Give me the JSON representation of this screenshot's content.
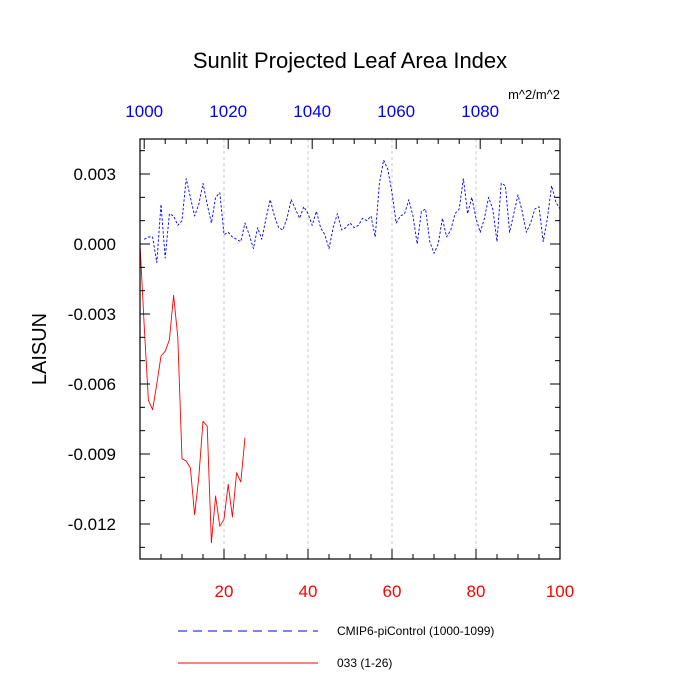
{
  "chart_data": {
    "type": "line",
    "title": "Sunlit Projected Leaf Area Index",
    "units": "m^2/m^2",
    "ylabel": "LAISUN",
    "xlabel": "",
    "ylim": [
      -0.0135,
      0.0045
    ],
    "y_ticks": [
      "0.003",
      "0.000",
      "-0.003",
      "-0.006",
      "-0.009",
      "-0.012"
    ],
    "y_tick_values": [
      0.003,
      0.0,
      -0.003,
      -0.006,
      -0.009,
      -0.012
    ],
    "x_bottom": {
      "range": [
        0,
        100
      ],
      "ticks": [
        "20",
        "40",
        "60",
        "80",
        "100"
      ],
      "tick_values": [
        20,
        40,
        60,
        80,
        100
      ],
      "color": "#ff0000"
    },
    "x_top": {
      "range": [
        999,
        1099
      ],
      "ticks": [
        "1000",
        "1020",
        "1040",
        "1060",
        "1080"
      ],
      "tick_values": [
        1000,
        1020,
        1040,
        1060,
        1080
      ],
      "color": "#0000ff"
    },
    "grid": "vertical dashed at x=20,40,60,80",
    "legend_position": "bottom",
    "series": [
      {
        "name": "CMIP6-piControl (1000-1099)",
        "color": "#0000ff",
        "dash": "dashed",
        "axis": "top",
        "x_start": 1,
        "values": [
          0.0002,
          0.0003,
          0.0003,
          -0.0008,
          0.0017,
          -0.0006,
          0.0013,
          0.0012,
          0.0008,
          0.001,
          0.0028,
          0.002,
          0.0012,
          0.0017,
          0.0026,
          0.0017,
          0.0009,
          0.002,
          0.0022,
          0.0004,
          0.0005,
          0.0003,
          0.0002,
          0.0001,
          0.0009,
          0.0004,
          -0.0002,
          0.0007,
          0.0002,
          0.0011,
          0.0019,
          0.0012,
          0.0007,
          0.0006,
          0.0011,
          0.0019,
          0.0015,
          0.0011,
          0.0016,
          0.0013,
          0.0008,
          0.0014,
          0.0007,
          0.0004,
          -0.0002,
          0.0007,
          0.0013,
          0.0006,
          0.0007,
          0.0009,
          0.0007,
          0.0008,
          0.0011,
          0.001,
          0.0012,
          0.0003,
          0.0026,
          0.0036,
          0.0032,
          0.0022,
          0.0009,
          0.0012,
          0.0013,
          0.0019,
          0.0012,
          0.0,
          0.0014,
          0.0015,
          0.0001,
          -0.0004,
          0.0,
          0.0011,
          0.0003,
          0.0006,
          0.0013,
          0.0015,
          0.0028,
          0.0013,
          0.002,
          0.0011,
          0.0005,
          0.0011,
          0.002,
          0.0015,
          0.0001,
          0.0026,
          0.0025,
          0.0005,
          0.0013,
          0.0021,
          0.0014,
          0.0005,
          0.0009,
          0.0015,
          0.0016,
          0.0001,
          0.0011,
          0.0025,
          0.0018,
          0.0015
        ]
      },
      {
        "name": "033 (1-26)",
        "color": "#ff0000",
        "dash": "solid",
        "axis": "bottom",
        "x_start": 0,
        "values": [
          0.0,
          -0.0035,
          -0.0067,
          -0.0071,
          -0.006,
          -0.0048,
          -0.0046,
          -0.0041,
          -0.0022,
          -0.004,
          -0.0092,
          -0.0093,
          -0.0096,
          -0.0116,
          -0.01,
          -0.0076,
          -0.0078,
          -0.0128,
          -0.0108,
          -0.0121,
          -0.0118,
          -0.0103,
          -0.0117,
          -0.0098,
          -0.0102,
          -0.0083
        ]
      }
    ]
  }
}
